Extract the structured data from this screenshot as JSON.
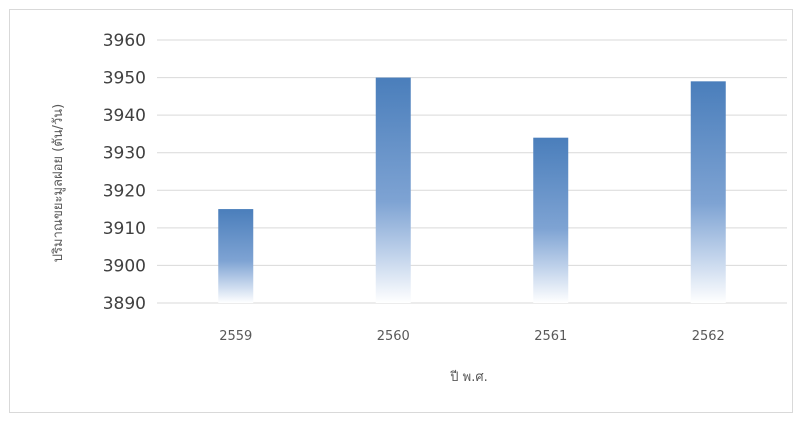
{
  "chart_data": {
    "type": "bar",
    "title": "",
    "categories": [
      "2559",
      "2560",
      "2561",
      "2562"
    ],
    "values": [
      3915,
      3950,
      3934,
      3949
    ],
    "xlabel": "ปี พ.ศ.",
    "ylabel": "ปริมาณขยะมูลฝอย (ตัน/วัน)",
    "ylim": [
      3890,
      3960
    ],
    "yticks": [
      3890,
      3900,
      3910,
      3920,
      3930,
      3940,
      3950,
      3960
    ],
    "grid": true,
    "legend": "none",
    "colors": {
      "bar_top": "#4a7ebb",
      "bar_bottom": "#ffffff",
      "grid": "#d9d9d9",
      "frame": "#d9d9d9"
    }
  }
}
